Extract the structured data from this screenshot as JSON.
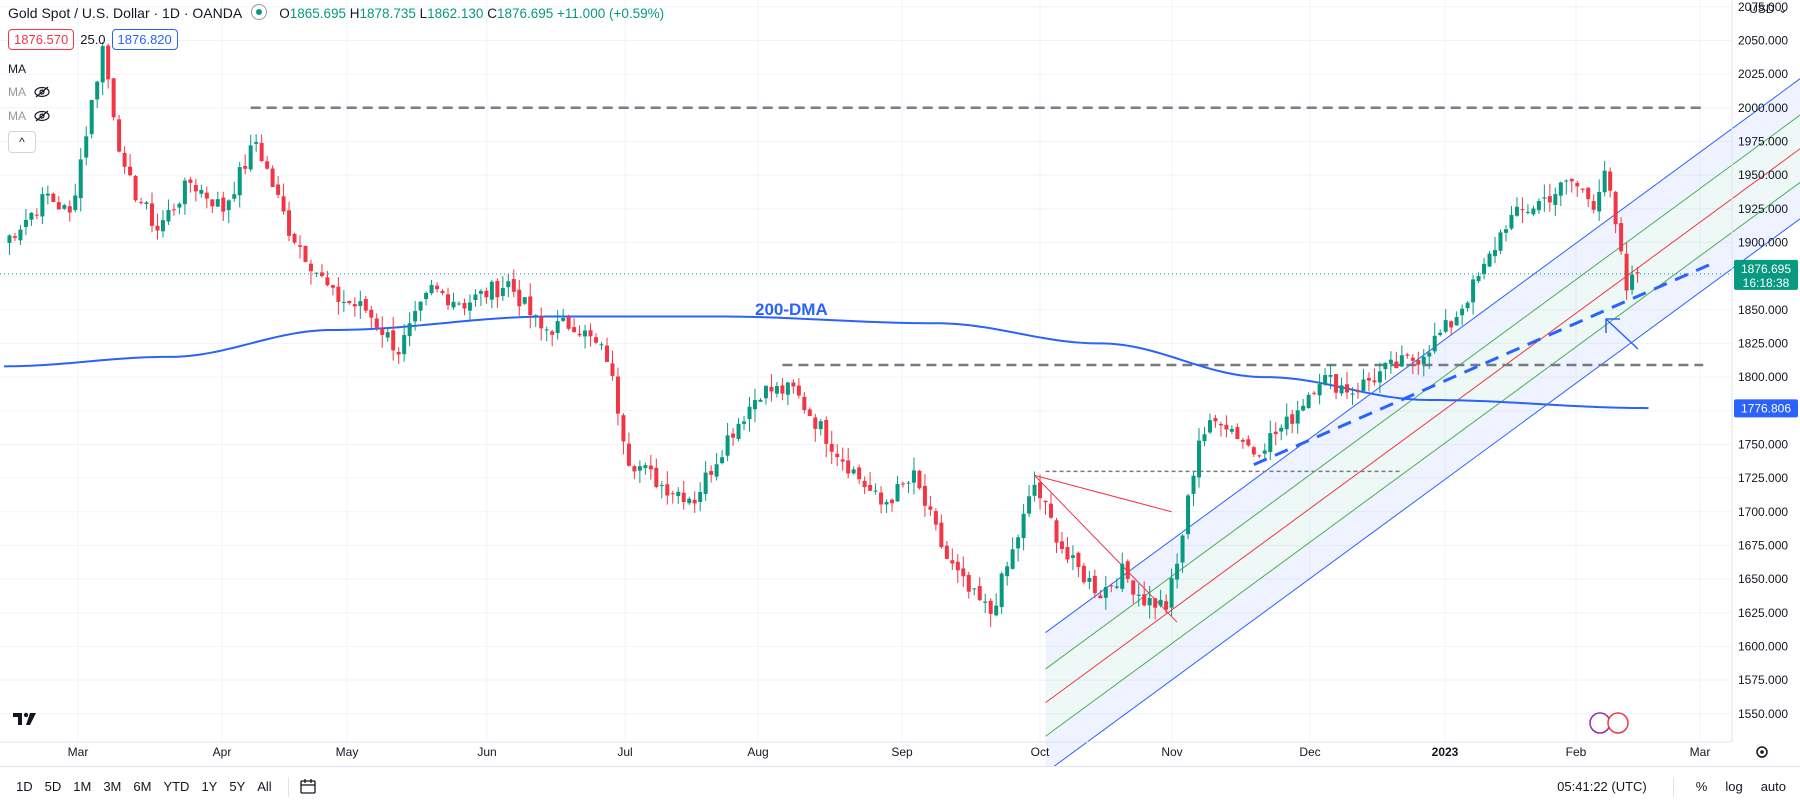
{
  "header": {
    "symbol": "Gold Spot / U.S. Dollar · 1D · OANDA",
    "o_label": "O",
    "o_value": "1865.695",
    "h_label": "H",
    "h_value": "1878.735",
    "l_label": "L",
    "l_value": "1862.130",
    "c_label": "C",
    "c_value": "1876.695",
    "change": "+11.000 (+0.59%)"
  },
  "trade": {
    "sell_price": "1876.570",
    "spread": "25.0",
    "buy_price": "1876.820"
  },
  "indicators": [
    {
      "label": "MA"
    },
    {
      "label": "MA"
    },
    {
      "label": "MA"
    }
  ],
  "collapse_symbol": "^",
  "currency": "USD ⌄",
  "price_tags": {
    "last": "1876.695",
    "countdown": "16:18:38",
    "ma": "1776.806"
  },
  "annotation_200dma": "200-DMA",
  "timeframes": [
    "1D",
    "5D",
    "1M",
    "3M",
    "6M",
    "YTD",
    "1Y",
    "5Y",
    "All"
  ],
  "clock": "05:41:22 (UTC)",
  "scale_options": [
    "%",
    "log",
    "auto"
  ],
  "colors": {
    "up": "#089981",
    "down": "#f23645",
    "ma": "#2962ff",
    "accent": "#2962ff"
  },
  "chart_data": {
    "type": "candlestick",
    "y_ticks": [
      1550,
      1575,
      1600,
      1625,
      1650,
      1675,
      1700,
      1725,
      1750,
      1775,
      1800,
      1825,
      1850,
      1875,
      1900,
      1925,
      1950,
      1975,
      2000,
      2025,
      2050,
      2075
    ],
    "y_range": [
      1532,
      2083
    ],
    "x_labels": [
      "Mar",
      "Apr",
      "May",
      "Jun",
      "Jul",
      "Aug",
      "Sep",
      "Oct",
      "Nov",
      "Dec",
      "2023",
      "Feb",
      "Mar"
    ],
    "anchors": [
      {
        "d": 0,
        "c": 1900
      },
      {
        "d": 8,
        "c": 1935
      },
      {
        "d": 12,
        "c": 1920
      },
      {
        "d": 18,
        "c": 2045
      },
      {
        "d": 22,
        "c": 1950
      },
      {
        "d": 28,
        "c": 1910
      },
      {
        "d": 34,
        "c": 1945
      },
      {
        "d": 40,
        "c": 1925
      },
      {
        "d": 46,
        "c": 1975
      },
      {
        "d": 52,
        "c": 1910
      },
      {
        "d": 60,
        "c": 1860
      },
      {
        "d": 66,
        "c": 1850
      },
      {
        "d": 72,
        "c": 1820
      },
      {
        "d": 78,
        "c": 1865
      },
      {
        "d": 84,
        "c": 1855
      },
      {
        "d": 92,
        "c": 1870
      },
      {
        "d": 98,
        "c": 1835
      },
      {
        "d": 104,
        "c": 1840
      },
      {
        "d": 110,
        "c": 1815
      },
      {
        "d": 114,
        "c": 1740
      },
      {
        "d": 120,
        "c": 1720
      },
      {
        "d": 126,
        "c": 1710
      },
      {
        "d": 132,
        "c": 1755
      },
      {
        "d": 138,
        "c": 1790
      },
      {
        "d": 144,
        "c": 1790
      },
      {
        "d": 152,
        "c": 1745
      },
      {
        "d": 160,
        "c": 1705
      },
      {
        "d": 166,
        "c": 1725
      },
      {
        "d": 172,
        "c": 1665
      },
      {
        "d": 176,
        "c": 1640
      },
      {
        "d": 180,
        "c": 1625
      },
      {
        "d": 184,
        "c": 1670
      },
      {
        "d": 188,
        "c": 1720
      },
      {
        "d": 194,
        "c": 1665
      },
      {
        "d": 200,
        "c": 1640
      },
      {
        "d": 204,
        "c": 1655
      },
      {
        "d": 208,
        "c": 1635
      },
      {
        "d": 212,
        "c": 1630
      },
      {
        "d": 214,
        "c": 1660
      },
      {
        "d": 218,
        "c": 1755
      },
      {
        "d": 222,
        "c": 1770
      },
      {
        "d": 228,
        "c": 1745
      },
      {
        "d": 234,
        "c": 1765
      },
      {
        "d": 240,
        "c": 1800
      },
      {
        "d": 246,
        "c": 1790
      },
      {
        "d": 252,
        "c": 1805
      },
      {
        "d": 258,
        "c": 1815
      },
      {
        "d": 264,
        "c": 1840
      },
      {
        "d": 270,
        "c": 1880
      },
      {
        "d": 274,
        "c": 1915
      },
      {
        "d": 280,
        "c": 1930
      },
      {
        "d": 286,
        "c": 1945
      },
      {
        "d": 290,
        "c": 1930
      },
      {
        "d": 292,
        "c": 1955
      },
      {
        "d": 294,
        "c": 1910
      },
      {
        "d": 296,
        "c": 1865
      },
      {
        "d": 298,
        "c": 1877
      }
    ],
    "ma200": [
      {
        "d": 0,
        "v": 1808
      },
      {
        "d": 30,
        "v": 1815
      },
      {
        "d": 60,
        "v": 1835
      },
      {
        "d": 100,
        "v": 1845
      },
      {
        "d": 130,
        "v": 1845
      },
      {
        "d": 170,
        "v": 1840
      },
      {
        "d": 200,
        "v": 1825
      },
      {
        "d": 230,
        "v": 1800
      },
      {
        "d": 260,
        "v": 1783
      },
      {
        "d": 300,
        "v": 1777
      }
    ],
    "last_price": 1876.695,
    "levels": [
      {
        "from_d": 45,
        "to_d": 310,
        "price": 2000
      },
      {
        "from_d": 142,
        "to_d": 310,
        "price": 1809
      },
      {
        "from_d": 190,
        "to_d": 255,
        "price": 1730
      }
    ]
  }
}
